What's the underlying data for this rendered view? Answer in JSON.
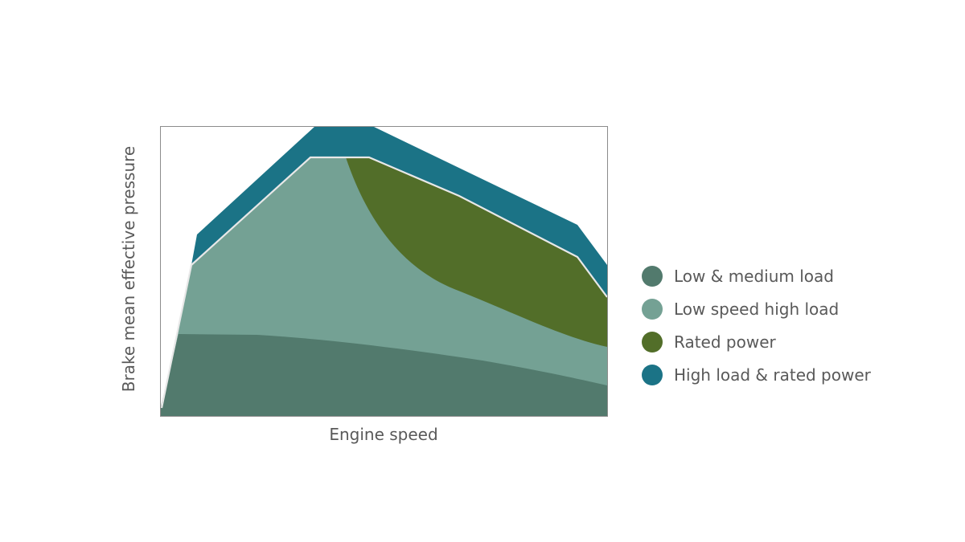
{
  "axes": {
    "x_label": "Engine speed",
    "y_label": "Brake mean effective pressure"
  },
  "colors": {
    "plot_frame": "#8c8c8c",
    "boundary_line": "#e8e8e8"
  },
  "legend": {
    "items": [
      {
        "label": "Low & medium load",
        "color": "#527a6d"
      },
      {
        "label": "Low speed high load",
        "color": "#74a194"
      },
      {
        "label": "Rated power",
        "color": "#526e29"
      },
      {
        "label": "High load & rated power",
        "color": "#1b7386"
      }
    ]
  }
}
